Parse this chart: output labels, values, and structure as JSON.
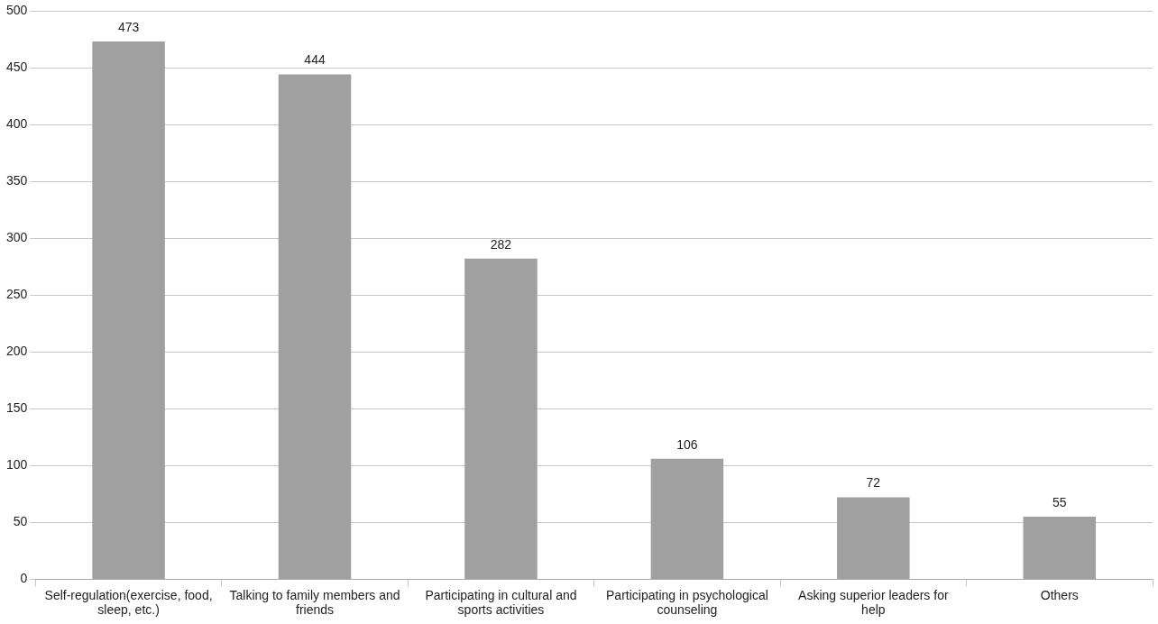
{
  "chart_data": {
    "type": "bar",
    "categories": [
      "Self-regulation(exercise, food, sleep, etc.)",
      "Talking to family members and friends",
      "Participating in cultural and sports activities",
      "Participating in psychological counseling",
      "Asking superior leaders for help",
      "Others"
    ],
    "values": [
      473,
      444,
      282,
      106,
      72,
      55
    ],
    "color": "#a0a0a0",
    "ylim": [
      0,
      500
    ],
    "yticks": [
      0,
      50,
      100,
      150,
      200,
      250,
      300,
      350,
      400,
      450,
      500
    ],
    "grid": "y",
    "legend": false,
    "data_labels": true
  }
}
